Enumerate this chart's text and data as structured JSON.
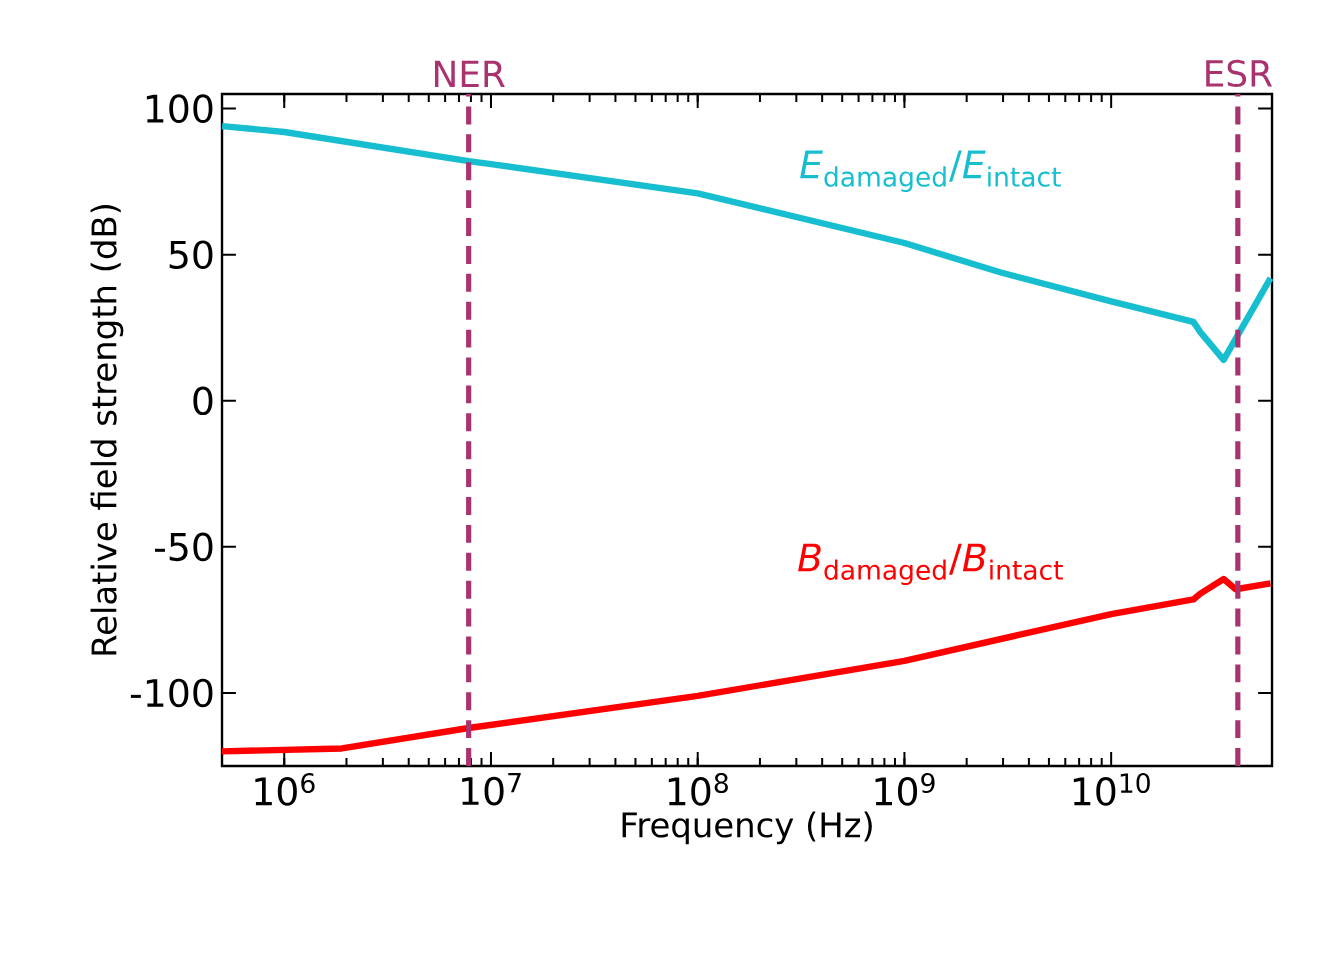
{
  "chart_data": {
    "type": "line",
    "xlabel": "Frequency (Hz)",
    "ylabel": "Relative field strength (dB)",
    "log": "x",
    "xlim": [
      500000,
      60000000000
    ],
    "ylim": [
      -125,
      105
    ],
    "xticks": [
      {
        "value": 1000000,
        "label": "10$^{6}$"
      },
      {
        "value": 10000000,
        "label": "10$^{7}$"
      },
      {
        "value": 100000000,
        "label": "10$^{8}$"
      },
      {
        "value": 1000000000,
        "label": "10$^{9}$"
      },
      {
        "value": 10000000000,
        "label": "10$^{10}$"
      }
    ],
    "yticks": [
      -100,
      -50,
      0,
      50,
      100
    ],
    "series": [
      {
        "name": "*E*$_{damaged}$/*E*$_{intact}$",
        "color": "#17becf",
        "x": [
          500000,
          1000000,
          7800000,
          10000000,
          100000000,
          1000000000,
          2900000000,
          10000000000,
          25000000000,
          27000000000,
          35000000000,
          59000000000
        ],
        "values": [
          94,
          92,
          82,
          81,
          71,
          54,
          44,
          34,
          27,
          23.5,
          14,
          42
        ]
      },
      {
        "name": "*B*$_{damaged}$/*B*$_{intact}$",
        "color": "#ff0000",
        "x": [
          500000,
          1900000,
          7800000,
          100000000,
          1000000000,
          10000000000,
          25000000000,
          27000000000,
          35000000000,
          40000000000,
          59000000000
        ],
        "values": [
          -120,
          -119,
          -112,
          -101,
          -89,
          -73,
          -68,
          -66,
          -61,
          -64.5,
          -62.5
        ]
      }
    ],
    "ref_lines": [
      {
        "axis": "x",
        "value": 7800000,
        "label": "NER",
        "color": "#a8336f",
        "line_style": "dashed"
      },
      {
        "axis": "x",
        "value": 41000000000,
        "label": "ESR",
        "color": "#a8336f",
        "line_style": "dashed"
      }
    ],
    "grid": false,
    "legend": false
  }
}
